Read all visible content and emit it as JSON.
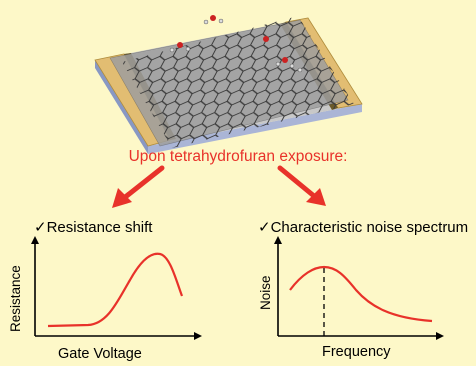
{
  "caption": "Upon tetrahydrofuran exposure:",
  "left_panel": {
    "title": "Resistance shift",
    "check_mark": "✓",
    "ylabel": "Resistance",
    "xlabel": "Gate Voltage"
  },
  "right_panel": {
    "title": "Characteristic noise spectrum",
    "check_mark": "✓",
    "ylabel": "Noise",
    "xlabel": "Frequency"
  },
  "colors": {
    "background": "#fdf8c8",
    "accent_red": "#e8322a",
    "electrode_gold": "#e2bd72",
    "graphene_gray": "#9e9e9e",
    "substrate_blue": "#aab5d6"
  }
}
